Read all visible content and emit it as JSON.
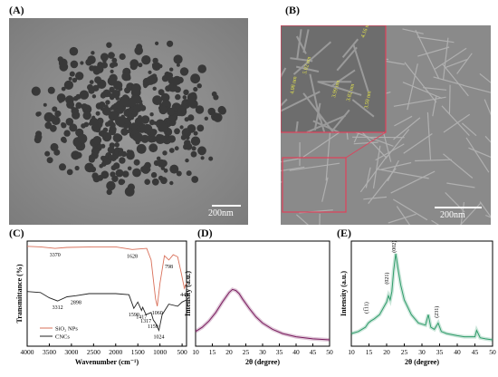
{
  "panels": {
    "A": {
      "label": "(A)",
      "scale_label": "200nm"
    },
    "B": {
      "label": "(B)",
      "scale_label": "200nm",
      "annotations": [
        "4.16 nm",
        "5.02 nm",
        "4.08 nm",
        "3.99 nm",
        "3.82 nm",
        "3.50 nm"
      ]
    },
    "C": {
      "label": "(C)"
    },
    "D": {
      "label": "(D)"
    },
    "E": {
      "label": "(E)"
    }
  },
  "colors": {
    "sio2": "#d9705a",
    "cnc": "#222222",
    "xrd_d": "#7a1d5e",
    "xrd_e": "#2f9c6a"
  },
  "chart_data": [
    {
      "type": "line",
      "panel": "C",
      "xlabel": "Wavenumber (cm⁻¹)",
      "ylabel": "Transmittance (%)",
      "xlim": [
        4000,
        400
      ],
      "x_reversed": true,
      "xticks": [
        "4000",
        "3500",
        "3000",
        "2500",
        "2000",
        "1500",
        "1000",
        "500"
      ],
      "legend": [
        "SiO₂ NPs",
        "CNCs"
      ],
      "legend_placement": "bottom-left",
      "series": [
        {
          "name": "SiO₂ NPs",
          "x": [
            4000,
            3700,
            3370,
            3100,
            2500,
            2000,
            1628,
            1300,
            1200,
            1100,
            1060,
            1000,
            900,
            798,
            700,
            600,
            520,
            449,
            400
          ],
          "y": [
            95,
            94.5,
            93,
            94,
            94.5,
            94.5,
            92,
            93,
            82,
            45,
            38,
            60,
            86,
            82,
            87,
            85,
            70,
            55,
            60
          ]
        },
        {
          "name": "CNCs",
          "x": [
            4000,
            3700,
            3500,
            3312,
            3100,
            2898,
            2600,
            2000,
            1700,
            1590,
            1500,
            1417,
            1390,
            1317,
            1200,
            1150,
            1100,
            1024,
            950,
            800,
            600,
            500,
            400
          ],
          "y": [
            52,
            51,
            46,
            43,
            47,
            48,
            50,
            50,
            49,
            36,
            42,
            34,
            37,
            30,
            32,
            25,
            22,
            15,
            30,
            40,
            38,
            42,
            44
          ]
        }
      ],
      "annotations": [
        {
          "text": "3370",
          "x": 3370,
          "y": 93
        },
        {
          "text": "1628",
          "x": 1628,
          "y": 92
        },
        {
          "text": "798",
          "x": 798,
          "y": 82
        },
        {
          "text": "1060",
          "x": 1060,
          "y": 38
        },
        {
          "text": "449",
          "x": 449,
          "y": 55
        },
        {
          "text": "3312",
          "x": 3312,
          "y": 43
        },
        {
          "text": "2898",
          "x": 2898,
          "y": 48
        },
        {
          "text": "1590",
          "x": 1590,
          "y": 36
        },
        {
          "text": "1417",
          "x": 1417,
          "y": 34
        },
        {
          "text": "1317",
          "x": 1317,
          "y": 30
        },
        {
          "text": "1159",
          "x": 1159,
          "y": 25
        },
        {
          "text": "1024",
          "x": 1024,
          "y": 15
        }
      ]
    },
    {
      "type": "line",
      "panel": "D",
      "xlabel": "2θ (degree)",
      "ylabel": "Intensity (a.u.)",
      "xlim": [
        10,
        50
      ],
      "ylim": [
        0,
        100
      ],
      "xticks": [
        "10",
        "15",
        "20",
        "25",
        "30",
        "35",
        "40",
        "45",
        "50"
      ],
      "series": [
        {
          "name": "",
          "x": [
            10,
            12,
            14,
            16,
            18,
            20,
            21,
            22,
            23,
            24,
            26,
            28,
            30,
            33,
            36,
            40,
            45,
            50
          ],
          "y": [
            14,
            18,
            24,
            32,
            42,
            51,
            54,
            53,
            50,
            45,
            36,
            28,
            22,
            16,
            12,
            9,
            7,
            6
          ]
        }
      ]
    },
    {
      "type": "line",
      "panel": "E",
      "xlabel": "2θ (degree)",
      "ylabel": "Intensity (a.u.)",
      "xlim": [
        10,
        50
      ],
      "ylim": [
        0,
        100
      ],
      "xticks": [
        "10",
        "15",
        "20",
        "25",
        "30",
        "35",
        "40",
        "45",
        "50"
      ],
      "peak_labels": [
        {
          "text": "(1̅1⁠1)",
          "x": 14.8,
          "y": 34
        },
        {
          "text": "(021)",
          "x": 20.5,
          "y": 62
        },
        {
          "text": "(002)",
          "x": 22.6,
          "y": 92
        },
        {
          "text": "(231)",
          "x": 34.6,
          "y": 30
        }
      ],
      "series": [
        {
          "name": "",
          "x": [
            10,
            12,
            14,
            14.8,
            15.5,
            16.5,
            18,
            19,
            20,
            20.5,
            21,
            21.5,
            22,
            22.6,
            23.2,
            24,
            25,
            27,
            29,
            31,
            31.8,
            32.5,
            33.5,
            34.6,
            35.5,
            37,
            40,
            42,
            45,
            45.5,
            46.5,
            48,
            50
          ],
          "y": [
            12,
            14,
            18,
            22,
            24,
            26,
            30,
            36,
            42,
            48,
            44,
            52,
            72,
            88,
            74,
            58,
            44,
            30,
            22,
            20,
            30,
            18,
            16,
            22,
            14,
            12,
            10,
            9,
            9,
            15,
            8,
            7,
            6
          ]
        }
      ]
    }
  ]
}
